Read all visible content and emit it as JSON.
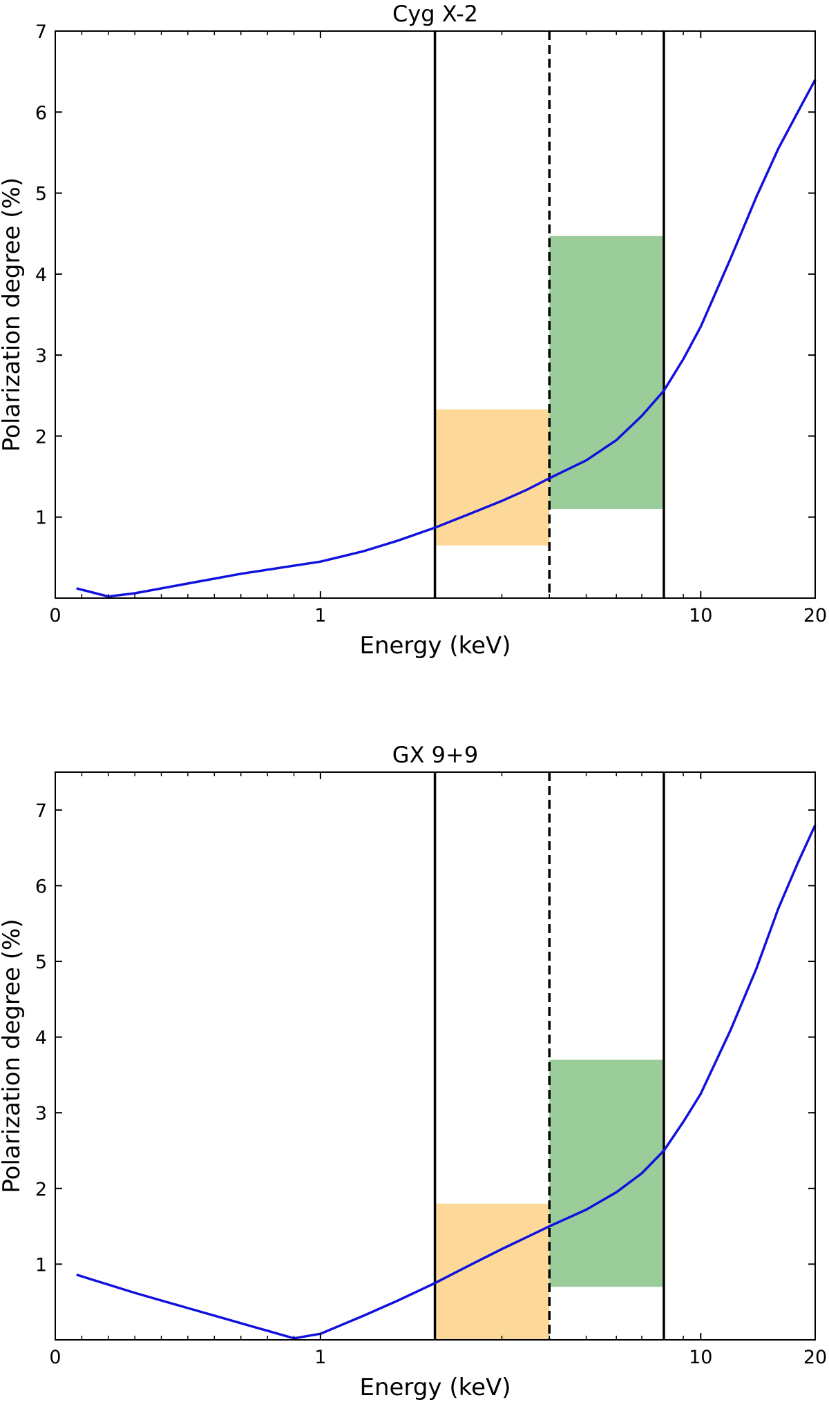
{
  "colors": {
    "curve": "#1111dd",
    "orange_band": "#fdd999",
    "green_band": "#9bcd9b",
    "axis": "#000000"
  },
  "chart_data": [
    {
      "type": "line",
      "title": "Cyg X-2",
      "xlabel": "Energy (keV)",
      "ylabel": "Polarization degree (%)",
      "xscale": "symlog",
      "xlim": [
        0,
        20
      ],
      "ylim": [
        0,
        7
      ],
      "x_ticks": [
        0,
        1,
        10,
        20
      ],
      "x_tick_labels": [
        "0",
        "1",
        "10",
        "20"
      ],
      "y_ticks": [
        1,
        2,
        3,
        4,
        5,
        6,
        7
      ],
      "y_tick_labels": [
        "1",
        "2",
        "3",
        "4",
        "5",
        "6",
        "7"
      ],
      "vertical_lines": [
        {
          "x": 2,
          "style": "solid"
        },
        {
          "x": 4,
          "style": "dashed"
        },
        {
          "x": 8,
          "style": "solid"
        }
      ],
      "bands": [
        {
          "x": [
            2,
            4
          ],
          "y": [
            0.65,
            2.33
          ],
          "color": "orange"
        },
        {
          "x": [
            4,
            8
          ],
          "y": [
            1.1,
            4.47
          ],
          "color": "green"
        }
      ],
      "series": [
        {
          "x": [
            0.08,
            0.2,
            0.3,
            0.5,
            0.7,
            1.0,
            1.3,
            1.6,
            2.0,
            2.5,
            3.0,
            3.5,
            4.0,
            5.0,
            6.0,
            7.0,
            8.0,
            9.0,
            10.0,
            12.0,
            14.0,
            16.0,
            18.0,
            20.0
          ],
          "y": [
            0.12,
            0.02,
            0.06,
            0.18,
            0.3,
            0.45,
            0.58,
            0.71,
            0.87,
            1.05,
            1.2,
            1.34,
            1.48,
            1.7,
            1.95,
            2.25,
            2.56,
            2.95,
            3.35,
            4.2,
            4.95,
            5.55,
            6.0,
            6.4
          ]
        }
      ],
      "grid": false
    },
    {
      "type": "line",
      "title": "GX 9+9",
      "xlabel": "Energy (keV)",
      "ylabel": "Polarization degree (%)",
      "xscale": "symlog",
      "xlim": [
        0,
        20
      ],
      "ylim": [
        0,
        7.5
      ],
      "x_ticks": [
        0,
        1,
        10,
        20
      ],
      "x_tick_labels": [
        "0",
        "1",
        "10",
        "20"
      ],
      "y_ticks": [
        1,
        2,
        3,
        4,
        5,
        6,
        7
      ],
      "y_tick_labels": [
        "1",
        "2",
        "3",
        "4",
        "5",
        "6",
        "7"
      ],
      "vertical_lines": [
        {
          "x": 2,
          "style": "solid"
        },
        {
          "x": 4,
          "style": "dashed"
        },
        {
          "x": 8,
          "style": "solid"
        }
      ],
      "bands": [
        {
          "x": [
            2,
            4
          ],
          "y": [
            0,
            1.8
          ],
          "color": "orange"
        },
        {
          "x": [
            4,
            8
          ],
          "y": [
            0.7,
            3.7
          ],
          "color": "green"
        }
      ],
      "series": [
        {
          "x": [
            0.08,
            0.3,
            0.5,
            0.7,
            0.9,
            1.0,
            1.3,
            1.6,
            2.0,
            2.5,
            3.0,
            3.5,
            4.0,
            5.0,
            6.0,
            7.0,
            8.0,
            9.0,
            10.0,
            12.0,
            14.0,
            16.0,
            18.0,
            20.0
          ],
          "y": [
            0.86,
            0.62,
            0.42,
            0.22,
            0.02,
            0.08,
            0.32,
            0.52,
            0.75,
            1.0,
            1.2,
            1.36,
            1.5,
            1.72,
            1.95,
            2.2,
            2.5,
            2.88,
            3.25,
            4.1,
            4.9,
            5.7,
            6.3,
            6.8
          ]
        }
      ],
      "grid": false
    }
  ]
}
